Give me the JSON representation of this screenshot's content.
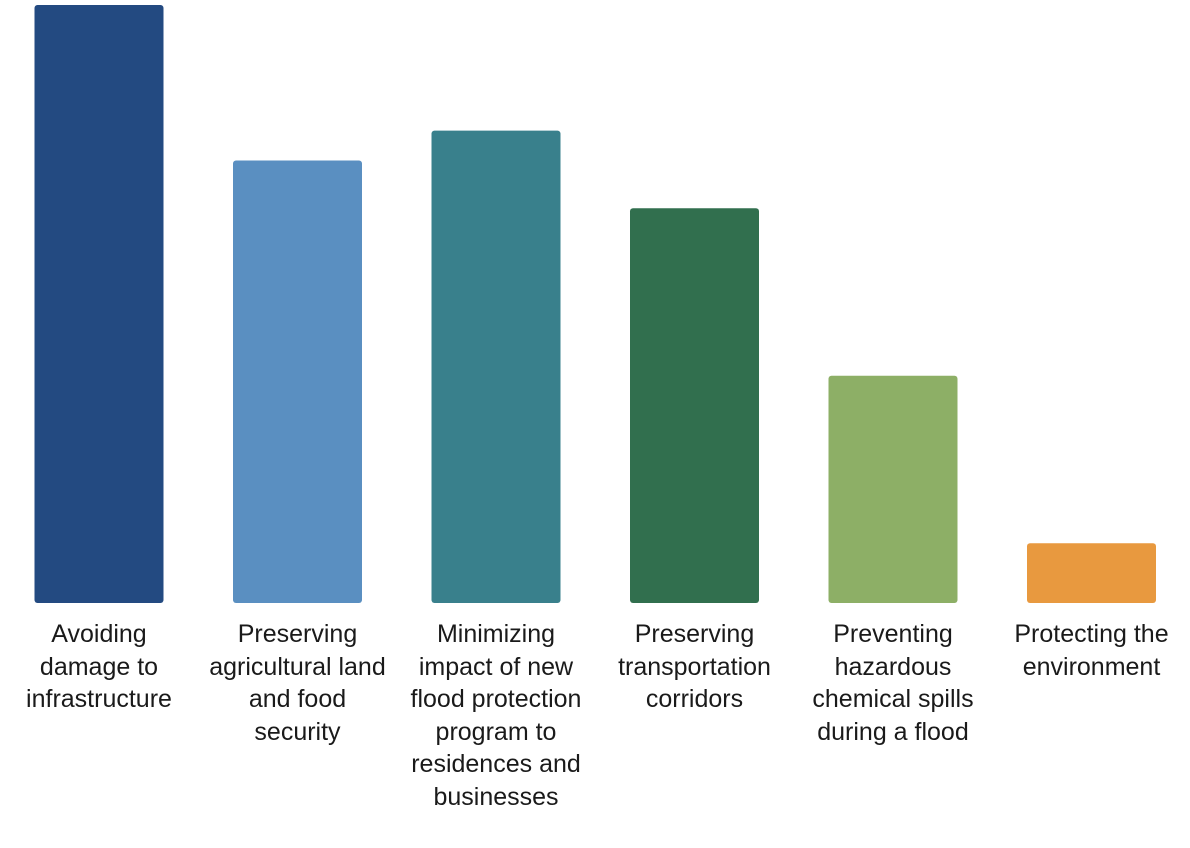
{
  "chart_data": {
    "type": "bar",
    "categories": [
      "Avoiding damage to infrastructure",
      "Preserving agricultural land and food security",
      "Minimizing impact of new flood protection program to residences and businesses",
      "Preserving transportation corridors",
      "Preventing hazardous chemical spills during a flood",
      "Protecting the environment"
    ],
    "values": [
      100,
      74,
      79,
      66,
      38,
      10
    ],
    "colors": [
      "#234a81",
      "#5a8fc1",
      "#39808c",
      "#316f4e",
      "#8daf66",
      "#e8993f"
    ],
    "ylim": [
      0,
      100
    ],
    "grid": false,
    "legend": "none"
  }
}
